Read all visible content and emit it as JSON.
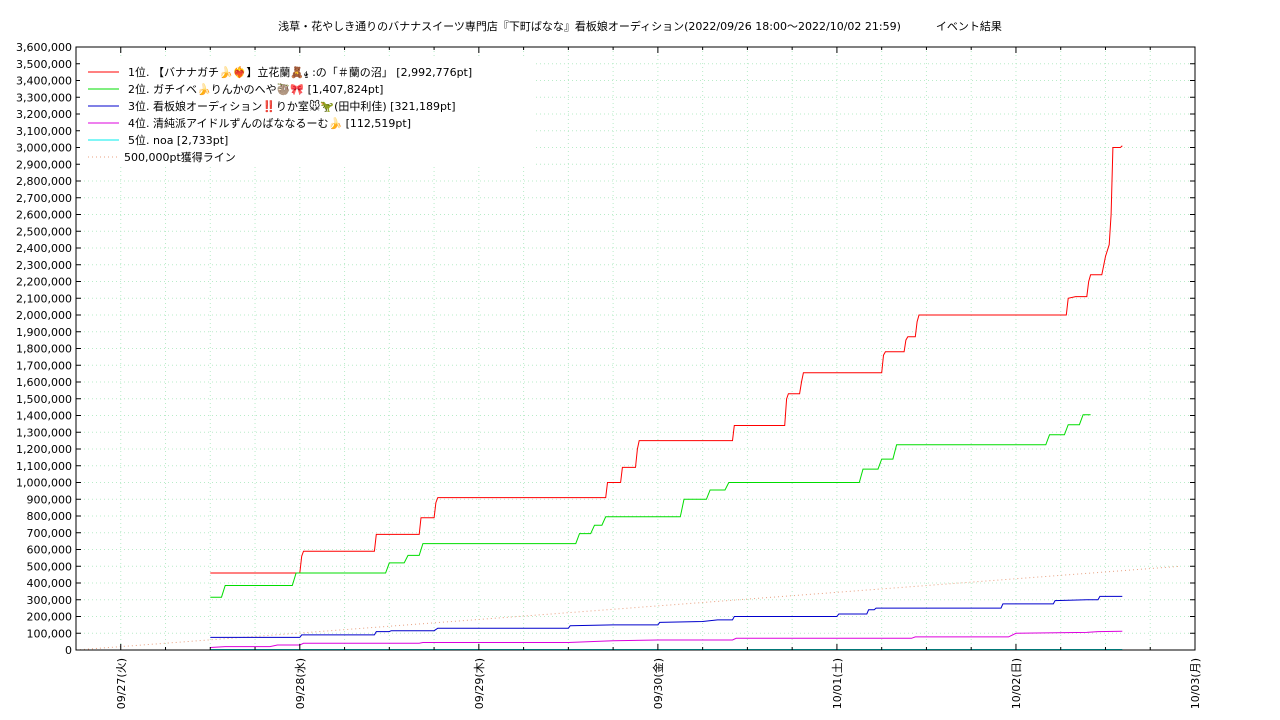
{
  "chart_data": {
    "type": "line",
    "title": "浅草・花やしき通りのバナナスイーツ専門店『下町ばなな』看板娘オーディション(2022/09/26 18:00〜2022/10/02 21:59)",
    "subtitle": "イベント結果",
    "x_ticks": [
      "09/27(火)",
      "09/28(水)",
      "09/29(木)",
      "09/30(金)",
      "10/01(土)",
      "10/02(日)",
      "10/03(月)"
    ],
    "x_range": [
      "2022/09/26 18:00",
      "2022/10/03 00:00"
    ],
    "y_range": [
      0,
      3600000
    ],
    "y_ticks": [
      "0",
      "100,000",
      "200,000",
      "300,000",
      "400,000",
      "500,000",
      "600,000",
      "700,000",
      "800,000",
      "900,000",
      "1,000,000",
      "1,100,000",
      "1,200,000",
      "1,300,000",
      "1,400,000",
      "1,500,000",
      "1,600,000",
      "1,700,000",
      "1,800,000",
      "1,900,000",
      "2,000,000",
      "2,100,000",
      "2,200,000",
      "2,300,000",
      "2,400,000",
      "2,500,000",
      "2,600,000",
      "2,700,000",
      "2,800,000",
      "2,900,000",
      "3,000,000",
      "3,100,000",
      "3,200,000",
      "3,300,000",
      "3,400,000",
      "3,500,000",
      "3,600,000"
    ],
    "grid": true,
    "legend_position": "top-left",
    "series": [
      {
        "name": "1位. 【バナナガチ🍌❤️‍🔥】立花蘭🧸𝓼̫ :の「＃蘭の沼」 [2,992,776pt]",
        "color": "#ff0000",
        "points": [
          [
            "2022/09/27 12:00",
            460000
          ],
          [
            "2022/09/28 00:00",
            460000
          ],
          [
            "2022/09/28 00:15",
            560000
          ],
          [
            "2022/09/28 00:30",
            590000
          ],
          [
            "2022/09/28 10:00",
            590000
          ],
          [
            "2022/09/28 10:15",
            690000
          ],
          [
            "2022/09/28 16:00",
            690000
          ],
          [
            "2022/09/28 16:15",
            790000
          ],
          [
            "2022/09/28 18:00",
            790000
          ],
          [
            "2022/09/28 18:15",
            880000
          ],
          [
            "2022/09/28 18:30",
            910000
          ],
          [
            "2022/09/29 17:00",
            910000
          ],
          [
            "2022/09/29 17:15",
            1000000
          ],
          [
            "2022/09/29 19:00",
            1000000
          ],
          [
            "2022/09/29 19:15",
            1090000
          ],
          [
            "2022/09/29 21:00",
            1090000
          ],
          [
            "2022/09/29 21:15",
            1200000
          ],
          [
            "2022/09/29 21:30",
            1250000
          ],
          [
            "2022/09/30 10:00",
            1250000
          ],
          [
            "2022/09/30 10:15",
            1340000
          ],
          [
            "2022/09/30 17:00",
            1340000
          ],
          [
            "2022/09/30 17:15",
            1500000
          ],
          [
            "2022/09/30 17:30",
            1530000
          ],
          [
            "2022/09/30 19:00",
            1530000
          ],
          [
            "2022/09/30 19:15",
            1600000
          ],
          [
            "2022/09/30 19:30",
            1655000
          ],
          [
            "2022/10/01 06:00",
            1655000
          ],
          [
            "2022/10/01 06:15",
            1760000
          ],
          [
            "2022/10/01 06:30",
            1780000
          ],
          [
            "2022/10/01 09:00",
            1780000
          ],
          [
            "2022/10/01 09:15",
            1850000
          ],
          [
            "2022/10/01 09:30",
            1870000
          ],
          [
            "2022/10/01 10:30",
            1870000
          ],
          [
            "2022/10/01 10:45",
            1960000
          ],
          [
            "2022/10/01 11:00",
            2000000
          ],
          [
            "2022/10/02 06:45",
            2000000
          ],
          [
            "2022/10/02 07:00",
            2100000
          ],
          [
            "2022/10/02 08:00",
            2110000
          ],
          [
            "2022/10/02 09:30",
            2110000
          ],
          [
            "2022/10/02 09:45",
            2200000
          ],
          [
            "2022/10/02 10:00",
            2240000
          ],
          [
            "2022/10/02 11:30",
            2240000
          ],
          [
            "2022/10/02 12:00",
            2350000
          ],
          [
            "2022/10/02 12:30",
            2420000
          ],
          [
            "2022/10/02 12:45",
            2600000
          ],
          [
            "2022/10/02 13:00",
            3000000
          ],
          [
            "2022/10/02 14:00",
            3000000
          ],
          [
            "2022/10/02 14:15",
            3010000
          ]
        ]
      },
      {
        "name": "2位. ガチイベ🍌りんかのへや🦥🎀 [1,407,824pt]",
        "color": "#00dd00",
        "points": [
          [
            "2022/09/27 12:00",
            315000
          ],
          [
            "2022/09/27 13:30",
            315000
          ],
          [
            "2022/09/27 14:00",
            385000
          ],
          [
            "2022/09/27 23:00",
            385000
          ],
          [
            "2022/09/27 23:30",
            460000
          ],
          [
            "2022/09/28 11:30",
            460000
          ],
          [
            "2022/09/28 12:00",
            520000
          ],
          [
            "2022/09/28 14:00",
            520000
          ],
          [
            "2022/09/28 14:30",
            565000
          ],
          [
            "2022/09/28 16:00",
            565000
          ],
          [
            "2022/09/28 16:30",
            635000
          ],
          [
            "2022/09/29 13:00",
            635000
          ],
          [
            "2022/09/29 13:30",
            695000
          ],
          [
            "2022/09/29 15:00",
            695000
          ],
          [
            "2022/09/29 15:30",
            745000
          ],
          [
            "2022/09/29 16:30",
            745000
          ],
          [
            "2022/09/29 17:00",
            795000
          ],
          [
            "2022/09/30 03:00",
            795000
          ],
          [
            "2022/09/30 03:30",
            900000
          ],
          [
            "2022/09/30 06:30",
            900000
          ],
          [
            "2022/09/30 07:00",
            955000
          ],
          [
            "2022/09/30 09:00",
            955000
          ],
          [
            "2022/09/30 09:30",
            1000000
          ],
          [
            "2022/10/01 03:00",
            1000000
          ],
          [
            "2022/10/01 03:30",
            1080000
          ],
          [
            "2022/10/01 05:30",
            1080000
          ],
          [
            "2022/10/01 06:00",
            1140000
          ],
          [
            "2022/10/01 07:30",
            1140000
          ],
          [
            "2022/10/01 08:00",
            1225000
          ],
          [
            "2022/10/02 04:00",
            1225000
          ],
          [
            "2022/10/02 04:30",
            1285000
          ],
          [
            "2022/10/02 06:30",
            1285000
          ],
          [
            "2022/10/02 07:00",
            1345000
          ],
          [
            "2022/10/02 08:30",
            1345000
          ],
          [
            "2022/10/02 09:00",
            1405000
          ],
          [
            "2022/10/02 10:00",
            1405000
          ]
        ]
      },
      {
        "name": "3位. 看板娘オーディション‼️りか室🐭🦖(田中利佳) [321,189pt]",
        "color": "#0000cc",
        "points": [
          [
            "2022/09/27 12:00",
            75000
          ],
          [
            "2022/09/28 00:00",
            75000
          ],
          [
            "2022/09/28 00:15",
            90000
          ],
          [
            "2022/09/28 10:00",
            90000
          ],
          [
            "2022/09/28 10:15",
            110000
          ],
          [
            "2022/09/28 12:00",
            110000
          ],
          [
            "2022/09/28 12:15",
            115000
          ],
          [
            "2022/09/28 18:00",
            115000
          ],
          [
            "2022/09/28 18:30",
            130000
          ],
          [
            "2022/09/29 12:00",
            130000
          ],
          [
            "2022/09/29 12:15",
            145000
          ],
          [
            "2022/09/29 18:00",
            150000
          ],
          [
            "2022/09/30 00:00",
            150000
          ],
          [
            "2022/09/30 00:15",
            165000
          ],
          [
            "2022/09/30 06:00",
            170000
          ],
          [
            "2022/09/30 08:00",
            180000
          ],
          [
            "2022/09/30 10:00",
            180000
          ],
          [
            "2022/09/30 10:15",
            200000
          ],
          [
            "2022/10/01 00:00",
            200000
          ],
          [
            "2022/10/01 00:15",
            215000
          ],
          [
            "2022/10/01 04:00",
            215000
          ],
          [
            "2022/10/01 04:15",
            240000
          ],
          [
            "2022/10/01 05:00",
            240000
          ],
          [
            "2022/10/01 05:15",
            250000
          ],
          [
            "2022/10/01 22:00",
            250000
          ],
          [
            "2022/10/01 22:15",
            275000
          ],
          [
            "2022/10/02 05:00",
            275000
          ],
          [
            "2022/10/02 05:15",
            295000
          ],
          [
            "2022/10/02 09:30",
            300000
          ],
          [
            "2022/10/02 11:00",
            300000
          ],
          [
            "2022/10/02 11:15",
            320000
          ],
          [
            "2022/10/02 14:15",
            320000
          ]
        ]
      },
      {
        "name": "4位. 清純派アイドルずんのばななるーむ🍌 [112,519pt]",
        "color": "#dd00dd",
        "points": [
          [
            "2022/09/27 12:00",
            15000
          ],
          [
            "2022/09/27 14:00",
            20000
          ],
          [
            "2022/09/27 20:00",
            20000
          ],
          [
            "2022/09/27 21:00",
            30000
          ],
          [
            "2022/09/28 00:00",
            30000
          ],
          [
            "2022/09/28 00:30",
            40000
          ],
          [
            "2022/09/28 16:00",
            40000
          ],
          [
            "2022/09/28 16:30",
            45000
          ],
          [
            "2022/09/29 12:00",
            45000
          ],
          [
            "2022/09/29 15:00",
            50000
          ],
          [
            "2022/09/29 18:00",
            55000
          ],
          [
            "2022/09/30 00:00",
            60000
          ],
          [
            "2022/09/30 10:00",
            60000
          ],
          [
            "2022/09/30 10:30",
            70000
          ],
          [
            "2022/10/01 10:00",
            70000
          ],
          [
            "2022/10/01 10:30",
            78000
          ],
          [
            "2022/10/01 23:00",
            78000
          ],
          [
            "2022/10/02 00:00",
            100000
          ],
          [
            "2022/10/02 09:30",
            105000
          ],
          [
            "2022/10/02 11:00",
            110000
          ],
          [
            "2022/10/02 14:15",
            112500
          ]
        ]
      },
      {
        "name": "5位. noa [2,733pt]",
        "color": "#00eeee",
        "points": [
          [
            "2022/09/27 12:00",
            2733
          ],
          [
            "2022/10/02 14:15",
            2733
          ]
        ]
      },
      {
        "name": "500,000pt獲得ライン",
        "color": "#e8a080",
        "dashed": true,
        "points": [
          [
            "2022/09/26 18:00",
            0
          ],
          [
            "2022/10/02 21:59",
            500000
          ]
        ]
      }
    ]
  }
}
